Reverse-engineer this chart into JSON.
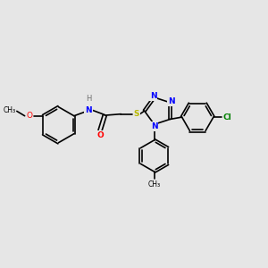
{
  "background_color": "#e6e6e6",
  "bond_color": "#000000",
  "bond_width": 1.2,
  "atom_colors": {
    "N": "#0000ff",
    "O": "#ff0000",
    "S": "#b8b800",
    "Cl": "#008000",
    "C": "#000000",
    "H": "#707070"
  },
  "font_size_atom": 6.5,
  "font_size_label": 5.5
}
